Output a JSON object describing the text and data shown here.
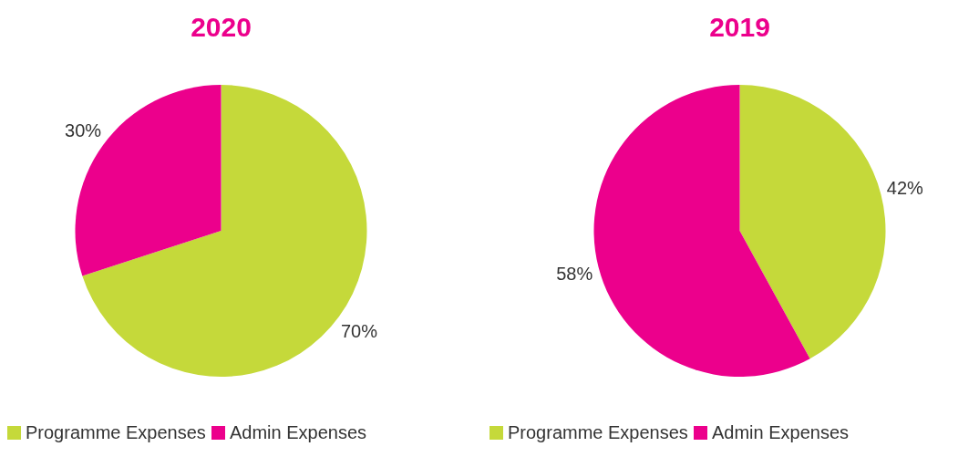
{
  "chart_data": [
    {
      "type": "pie",
      "title": "2020",
      "categories": [
        "Programme Expenses",
        "Admin Expenses"
      ],
      "values": [
        70,
        30
      ],
      "value_labels": [
        "70%",
        "30%"
      ],
      "colors": [
        "#c5d93a",
        "#ec008c"
      ],
      "legend": "bottom"
    },
    {
      "type": "pie",
      "title": "2019",
      "categories": [
        "Programme Expenses",
        "Admin Expenses"
      ],
      "values": [
        42,
        58
      ],
      "value_labels": [
        "42%",
        "58%"
      ],
      "colors": [
        "#c5d93a",
        "#ec008c"
      ],
      "legend": "bottom"
    }
  ]
}
